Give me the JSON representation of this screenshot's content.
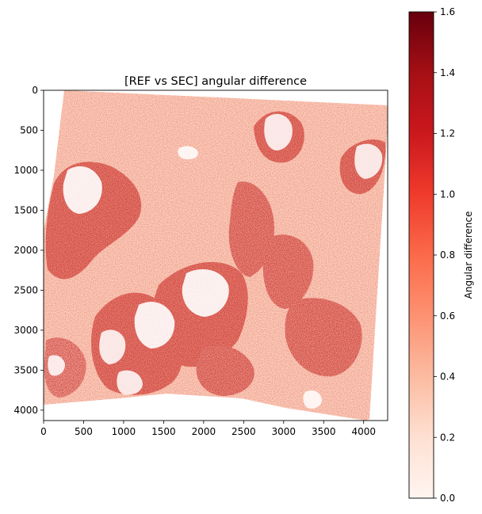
{
  "chart_data": {
    "type": "heatmap",
    "title": "[REF vs SEC] angular difference",
    "xlabel": "",
    "ylabel": "",
    "xlim": [
      0,
      4300
    ],
    "ylim": [
      4130,
      0
    ],
    "x_ticks": [
      0,
      500,
      1000,
      1500,
      2000,
      2500,
      3000,
      3500,
      4000
    ],
    "y_ticks": [
      0,
      500,
      1000,
      1500,
      2000,
      2500,
      3000,
      3500,
      4000
    ],
    "grid": false,
    "colormap": "Reds",
    "colorbar": {
      "label": "Angular difference",
      "min": 0.0,
      "max": 1.6,
      "ticks": [
        "0.0",
        "0.2",
        "0.4",
        "0.6",
        "0.8",
        "1.0",
        "1.2",
        "1.4",
        "1.6"
      ]
    },
    "colors": {
      "low": "#fff5f0",
      "mid": "#fb6a4a",
      "high": "#67000d"
    }
  }
}
